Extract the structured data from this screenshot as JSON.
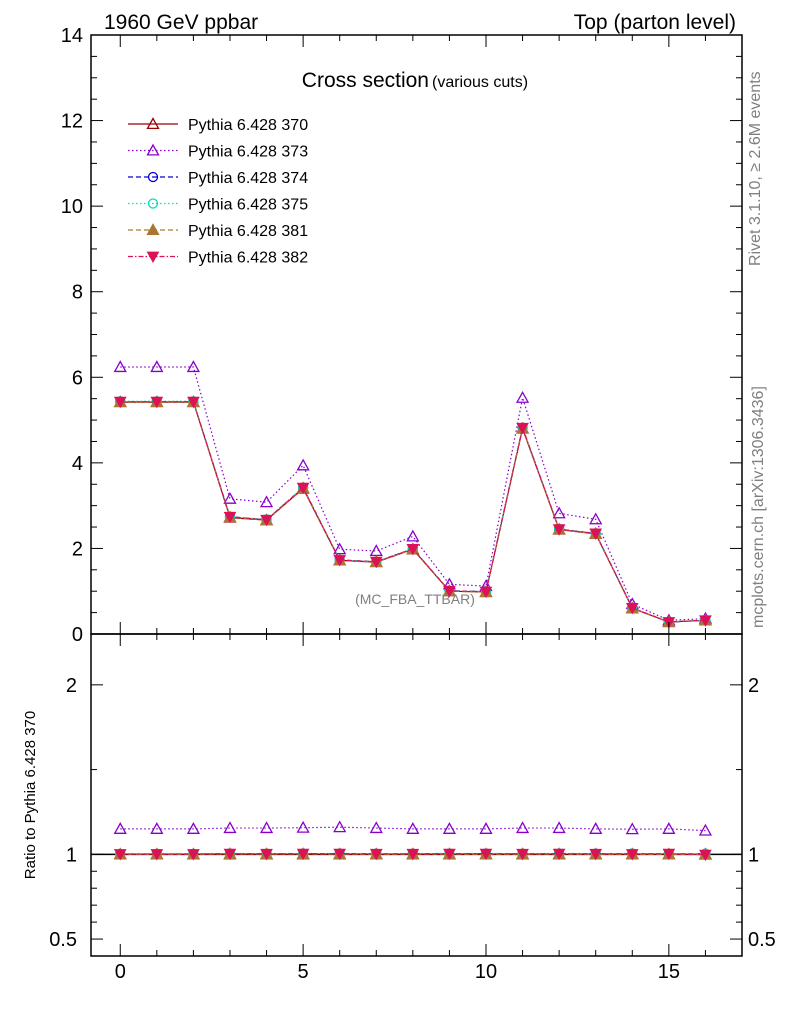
{
  "header": {
    "left": "1960 GeV ppbar",
    "right": "Top (parton level)"
  },
  "side": {
    "rivet": "Rivet 3.1.10, ≥ 2.6M events",
    "mcplots": "mcplots.cern.ch [arXiv:1306.3436]"
  },
  "colors": {
    "axis": "#000000",
    "side_text": "#808080",
    "analysis_text": "#808080"
  },
  "chart_data": [
    {
      "type": "line",
      "title": "Cross section",
      "subtitle": "(various cuts)",
      "analysis_label": "(MC_FBA_TTBAR)",
      "xlim": [
        -0.8,
        17
      ],
      "ylim": [
        0,
        14
      ],
      "y_ticks": [
        0,
        2,
        4,
        6,
        8,
        10,
        12,
        14
      ],
      "y_tick_labels": [
        "0",
        "2",
        "4",
        "6",
        "8",
        "10",
        "12",
        "14"
      ],
      "x": [
        0,
        1,
        2,
        3,
        4,
        5,
        6,
        7,
        8,
        9,
        10,
        11,
        12,
        13,
        14,
        15,
        16
      ],
      "legend_position": "top-left",
      "series": [
        {
          "name": "Pythia 6.428 370",
          "color": "#990000",
          "dash": "",
          "marker": "triangle-open",
          "values": [
            5.42,
            5.42,
            5.42,
            2.72,
            2.66,
            3.4,
            1.72,
            1.68,
            1.98,
            1.0,
            0.98,
            4.8,
            2.44,
            2.34,
            0.6,
            0.28,
            0.32
          ]
        },
        {
          "name": "Pythia 6.428 373",
          "color": "#8800cc",
          "dash": "1.5 2.5",
          "marker": "triangle-open",
          "values": [
            6.24,
            6.24,
            6.24,
            3.16,
            3.08,
            3.94,
            1.98,
            1.94,
            2.28,
            1.16,
            1.12,
            5.52,
            2.82,
            2.68,
            0.7,
            0.32,
            0.36
          ]
        },
        {
          "name": "Pythia 6.428 374",
          "color": "#0000dd",
          "dash": "5 3",
          "marker": "circle-open",
          "values": [
            5.43,
            5.43,
            5.43,
            2.74,
            2.67,
            3.42,
            1.73,
            1.69,
            1.99,
            1.01,
            0.99,
            4.82,
            2.45,
            2.35,
            0.61,
            0.28,
            0.32
          ]
        },
        {
          "name": "Pythia 6.428 375",
          "color": "#00ddbb",
          "dash": "1.5 2.5",
          "marker": "circle-open",
          "values": [
            5.44,
            5.44,
            5.44,
            2.74,
            2.68,
            3.42,
            1.73,
            1.69,
            1.99,
            1.01,
            0.99,
            4.82,
            2.46,
            2.35,
            0.61,
            0.28,
            0.32
          ]
        },
        {
          "name": "Pythia 6.428 381",
          "color": "#aa7733",
          "dash": "5 3",
          "marker": "triangle-filled",
          "values": [
            5.42,
            5.42,
            5.42,
            2.73,
            2.66,
            3.41,
            1.72,
            1.68,
            1.98,
            1.0,
            0.98,
            4.8,
            2.44,
            2.34,
            0.6,
            0.28,
            0.32
          ]
        },
        {
          "name": "Pythia 6.428 382",
          "color": "#dd1155",
          "dash": "5 2 1.5 2",
          "marker": "triangle-down-filled",
          "values": [
            5.43,
            5.43,
            5.43,
            2.74,
            2.67,
            3.42,
            1.73,
            1.69,
            1.99,
            1.01,
            0.99,
            4.82,
            2.45,
            2.35,
            0.61,
            0.28,
            0.32
          ]
        }
      ]
    },
    {
      "type": "line",
      "ylabel": "Ratio to Pythia 6.428 370",
      "xlim": [
        -0.8,
        17
      ],
      "ylim": [
        0.4,
        2.3
      ],
      "y_ticks": [
        0.5,
        1,
        2
      ],
      "y_tick_labels": [
        "0.5",
        "1",
        "2"
      ],
      "x_ticks": [
        0,
        5,
        10,
        15
      ],
      "x_tick_labels": [
        "0",
        "5",
        "10",
        "15"
      ],
      "x": [
        0,
        1,
        2,
        3,
        4,
        5,
        6,
        7,
        8,
        9,
        10,
        11,
        12,
        13,
        14,
        15,
        16
      ],
      "series": [
        {
          "name": "Pythia 6.428 370",
          "values": [
            1,
            1,
            1,
            1,
            1,
            1,
            1,
            1,
            1,
            1,
            1,
            1,
            1,
            1,
            1,
            1,
            1
          ]
        },
        {
          "name": "Pythia 6.428 373",
          "values": [
            1.15,
            1.15,
            1.15,
            1.155,
            1.155,
            1.157,
            1.16,
            1.155,
            1.15,
            1.15,
            1.15,
            1.155,
            1.155,
            1.15,
            1.148,
            1.15,
            1.14
          ]
        },
        {
          "name": "Pythia 6.428 374",
          "values": [
            1.002,
            1.002,
            1.002,
            1.004,
            1.003,
            1.004,
            1.004,
            1.003,
            1.003,
            1.004,
            1.004,
            1.003,
            1.003,
            1.003,
            1.004,
            1.002,
            1.003
          ]
        },
        {
          "name": "Pythia 6.428 375",
          "values": [
            1.003,
            1.003,
            1.003,
            1.005,
            1.004,
            1.004,
            1.005,
            1.004,
            1.004,
            1.005,
            1.005,
            1.004,
            1.005,
            1.004,
            1.005,
            1.003,
            1.004
          ]
        },
        {
          "name": "Pythia 6.428 381",
          "values": [
            1.0,
            1.0,
            1.0,
            1.002,
            1.001,
            1.002,
            1.001,
            1.0,
            1.001,
            1.001,
            1.0,
            1.001,
            1.001,
            1.0,
            1.0,
            0.999,
            0.998
          ]
        },
        {
          "name": "Pythia 6.428 382",
          "values": [
            1.002,
            1.002,
            1.002,
            1.004,
            1.003,
            1.004,
            1.004,
            1.003,
            1.003,
            1.004,
            1.004,
            1.003,
            1.004,
            1.003,
            1.002,
            1.004,
            0.998
          ]
        }
      ]
    }
  ]
}
